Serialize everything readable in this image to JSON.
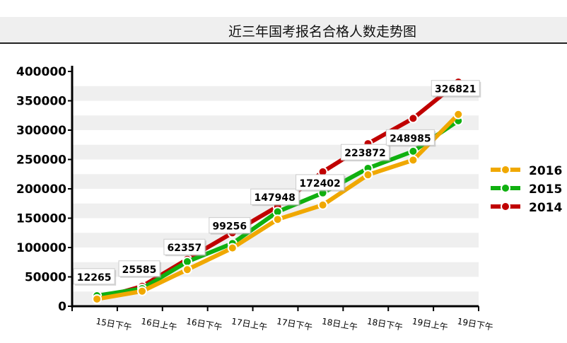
{
  "title": "近三年国考报名合格人数走势图",
  "chart_data": {
    "type": "line",
    "title": "近三年国考报名合格人数走势图",
    "categories": [
      "15日下午",
      "16日上午",
      "16日下午",
      "17日上午",
      "17日下午",
      "18日上午",
      "18日下午",
      "19日上午",
      "19日下午"
    ],
    "ylim": [
      0,
      400000
    ],
    "yticks": [
      0,
      50000,
      100000,
      150000,
      200000,
      250000,
      300000,
      350000,
      400000
    ],
    "grid": "alternating horizontal bands",
    "legend": "right",
    "series": [
      {
        "name": "2016",
        "color": "#f0a800",
        "values": [
          12265,
          25585,
          62357,
          99256,
          147948,
          172402,
          223872,
          248985,
          326821
        ],
        "labels": true
      },
      {
        "name": "2015",
        "color": "#10b010",
        "values": [
          18000,
          30000,
          76000,
          107000,
          161000,
          193000,
          235000,
          264000,
          316000
        ]
      },
      {
        "name": "2014",
        "color": "#c00000",
        "values": [
          12000,
          34000,
          80000,
          125000,
          170000,
          229000,
          277000,
          320000,
          382000
        ]
      }
    ]
  }
}
